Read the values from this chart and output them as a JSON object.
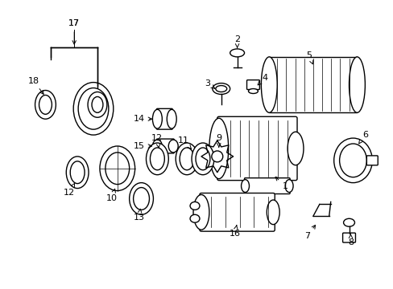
{
  "background_color": "#ffffff",
  "line_color": "#000000",
  "lw": 1.0
}
